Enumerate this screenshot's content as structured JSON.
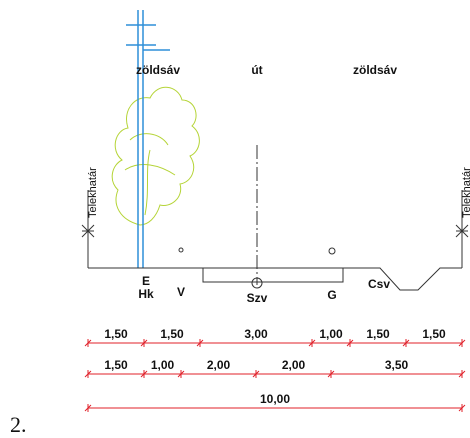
{
  "zones": {
    "left": "zöldsáv",
    "middle": "út",
    "right": "zöldsáv"
  },
  "boundary": {
    "left": "Telekhatár",
    "right": "Telekhatár"
  },
  "utilities": {
    "e": "E",
    "hk": "Hk",
    "v": "V",
    "szv": "Szv",
    "g": "G",
    "csv": "Csv"
  },
  "dimensions": {
    "row1": [
      "1,50",
      "1,50",
      "3,00",
      "1,00",
      "1,50",
      "1,50"
    ],
    "row2": [
      "1,50",
      "1,00",
      "2,00",
      "2,00",
      "3,50"
    ],
    "row3": [
      "10,00"
    ]
  },
  "figure_number": "2."
}
